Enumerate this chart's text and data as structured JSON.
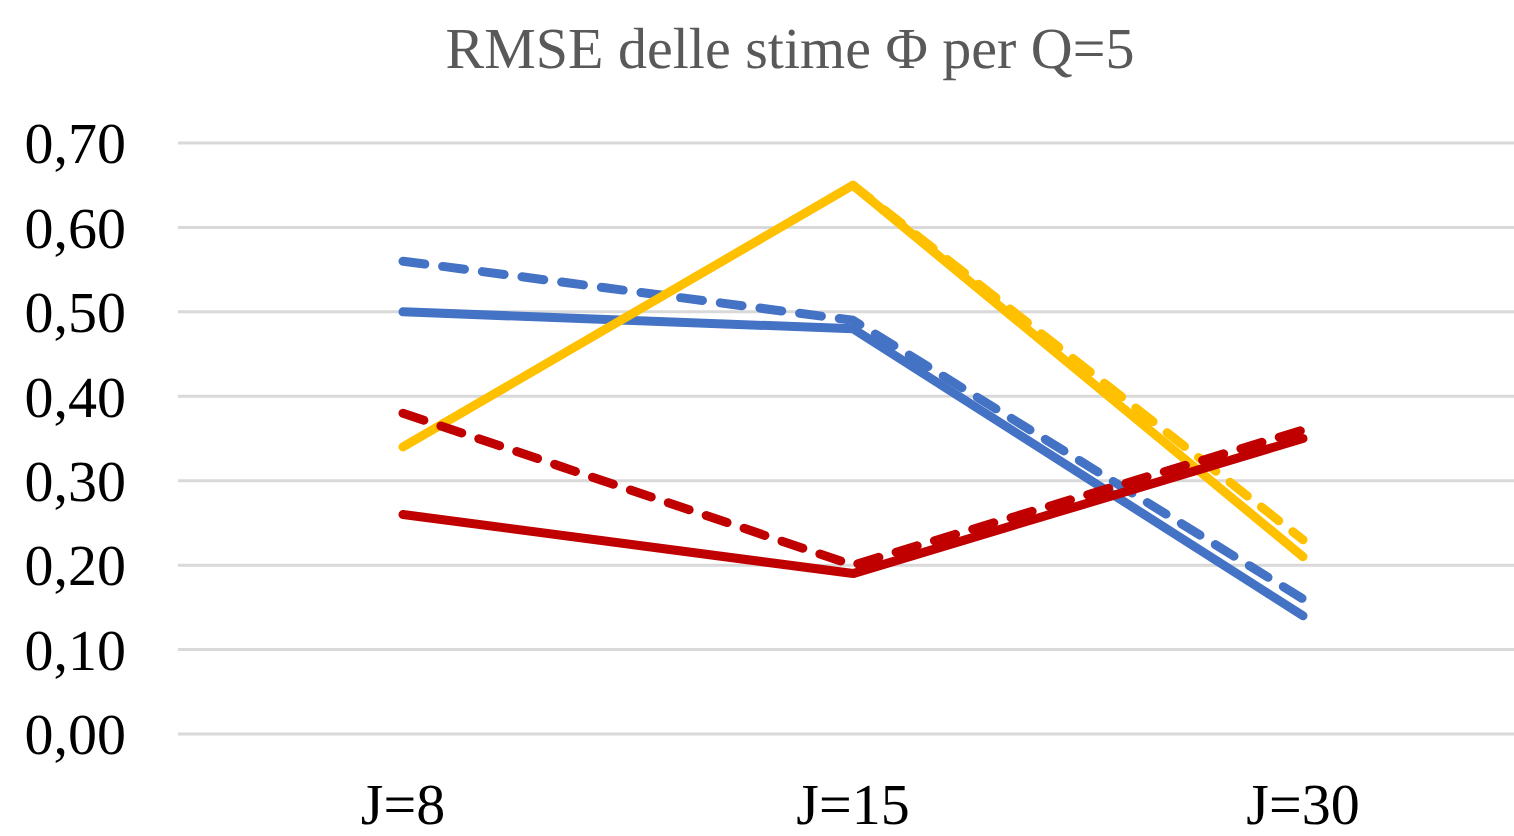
{
  "chart_data": {
    "type": "line",
    "title": "RMSE delle stime Φ per Q=5",
    "categories": [
      "J=8",
      "J=15",
      "J=30"
    ],
    "series": [
      {
        "color": "#4472c4",
        "line_style": "solid",
        "values": [
          0.5,
          0.48,
          0.14
        ]
      },
      {
        "color": "#4472c4",
        "line_style": "dashed",
        "values": [
          0.56,
          0.49,
          0.16
        ]
      },
      {
        "color": "#ffc000",
        "line_style": "solid",
        "values": [
          0.34,
          0.65,
          0.21
        ]
      },
      {
        "color": "#ffc000",
        "line_style": "dashed",
        "values": [
          null,
          0.65,
          0.23
        ]
      },
      {
        "color": "#c00000",
        "line_style": "solid",
        "values": [
          0.26,
          0.19,
          0.35
        ]
      },
      {
        "color": "#c00000",
        "line_style": "dashed",
        "values": [
          0.38,
          0.2,
          0.36
        ]
      }
    ],
    "ylim": [
      0,
      0.7
    ],
    "yticks": [
      {
        "value": 0,
        "label": "0,00"
      },
      {
        "value": 0.1,
        "label": "0,10"
      },
      {
        "value": 0.2,
        "label": "0,20"
      },
      {
        "value": 0.3,
        "label": "0,30"
      },
      {
        "value": 0.4,
        "label": "0,40"
      },
      {
        "value": 0.5,
        "label": "0,50"
      },
      {
        "value": 0.6,
        "label": "0,60"
      },
      {
        "value": 0.7,
        "label": "0,70"
      }
    ],
    "grid": "y"
  }
}
